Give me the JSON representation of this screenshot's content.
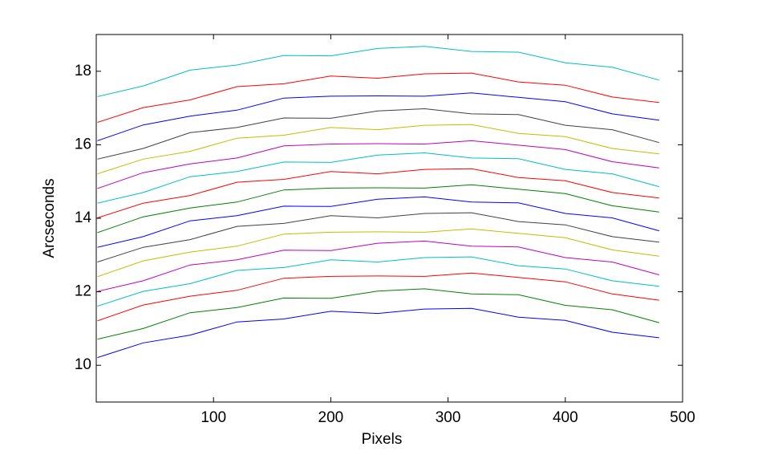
{
  "chart_data": {
    "type": "line",
    "xlabel": "Pixels",
    "ylabel": "Arcseconds",
    "x": [
      1,
      40,
      80,
      120,
      160,
      200,
      240,
      280,
      320,
      360,
      400,
      440,
      480
    ],
    "series": [
      {
        "color": "#0000ff",
        "values": [
          10.21,
          10.61,
          10.82,
          11.18,
          11.26,
          11.47,
          11.41,
          11.53,
          11.55,
          11.31,
          11.22,
          10.9,
          10.75
        ]
      },
      {
        "color": "#008000",
        "values": [
          10.71,
          11.0,
          11.43,
          11.57,
          11.83,
          11.82,
          12.02,
          12.08,
          11.94,
          11.92,
          11.63,
          11.51,
          11.16
        ]
      },
      {
        "color": "#ff0000",
        "values": [
          11.21,
          11.64,
          11.88,
          12.04,
          12.37,
          12.42,
          12.43,
          12.42,
          12.51,
          12.39,
          12.27,
          11.94,
          11.77
        ]
      },
      {
        "color": "#00bfbf",
        "values": [
          11.61,
          12.01,
          12.22,
          12.58,
          12.66,
          12.87,
          12.81,
          12.93,
          12.95,
          12.71,
          12.62,
          12.3,
          12.15
        ]
      },
      {
        "color": "#bf00bf",
        "values": [
          12.01,
          12.3,
          12.73,
          12.87,
          13.13,
          13.12,
          13.32,
          13.38,
          13.24,
          13.22,
          12.93,
          12.81,
          12.46
        ]
      },
      {
        "color": "#bfbf00",
        "values": [
          12.41,
          12.84,
          13.08,
          13.24,
          13.57,
          13.62,
          13.63,
          13.62,
          13.71,
          13.59,
          13.47,
          13.14,
          12.97
        ]
      },
      {
        "color": "#404040",
        "values": [
          12.81,
          13.21,
          13.42,
          13.78,
          13.86,
          14.07,
          14.01,
          14.13,
          14.15,
          13.91,
          13.82,
          13.5,
          13.35
        ]
      },
      {
        "color": "#0000ff",
        "values": [
          13.21,
          13.5,
          13.93,
          14.07,
          14.33,
          14.32,
          14.52,
          14.58,
          14.44,
          14.42,
          14.13,
          14.01,
          13.66
        ]
      },
      {
        "color": "#008000",
        "values": [
          13.61,
          14.04,
          14.28,
          14.44,
          14.77,
          14.82,
          14.83,
          14.82,
          14.91,
          14.79,
          14.67,
          14.34,
          14.17
        ]
      },
      {
        "color": "#ff0000",
        "values": [
          14.01,
          14.41,
          14.62,
          14.98,
          15.06,
          15.27,
          15.21,
          15.33,
          15.35,
          15.11,
          15.02,
          14.7,
          14.55
        ]
      },
      {
        "color": "#00bfbf",
        "values": [
          14.41,
          14.7,
          15.13,
          15.27,
          15.53,
          15.52,
          15.72,
          15.78,
          15.64,
          15.62,
          15.33,
          15.21,
          14.86
        ]
      },
      {
        "color": "#bf00bf",
        "values": [
          14.81,
          15.24,
          15.48,
          15.64,
          15.97,
          16.02,
          16.03,
          16.02,
          16.11,
          15.99,
          15.87,
          15.54,
          15.37
        ]
      },
      {
        "color": "#bfbf00",
        "values": [
          15.21,
          15.61,
          15.82,
          16.18,
          16.26,
          16.47,
          16.41,
          16.53,
          16.55,
          16.31,
          16.22,
          15.9,
          15.75
        ]
      },
      {
        "color": "#404040",
        "values": [
          15.61,
          15.9,
          16.33,
          16.47,
          16.73,
          16.72,
          16.92,
          16.98,
          16.84,
          16.82,
          16.53,
          16.41,
          16.06
        ]
      },
      {
        "color": "#0000ff",
        "values": [
          16.11,
          16.54,
          16.78,
          16.94,
          17.27,
          17.32,
          17.33,
          17.32,
          17.41,
          17.29,
          17.17,
          16.84,
          16.67
        ]
      },
      {
        "color": "#ff0000",
        "values": [
          16.61,
          17.01,
          17.22,
          17.58,
          17.66,
          17.87,
          17.81,
          17.93,
          17.95,
          17.71,
          17.62,
          17.3,
          17.15
        ]
      },
      {
        "color": "#00bfbf",
        "values": [
          17.31,
          17.6,
          18.03,
          18.17,
          18.43,
          18.42,
          18.62,
          18.68,
          18.54,
          18.52,
          18.23,
          18.11,
          17.76
        ]
      }
    ],
    "xlim": [
      0,
      500
    ],
    "xticks": [
      100,
      200,
      300,
      400,
      500
    ],
    "ylim": [
      9,
      19
    ],
    "yticks": [
      10,
      12,
      14,
      16,
      18
    ],
    "grid": false
  }
}
